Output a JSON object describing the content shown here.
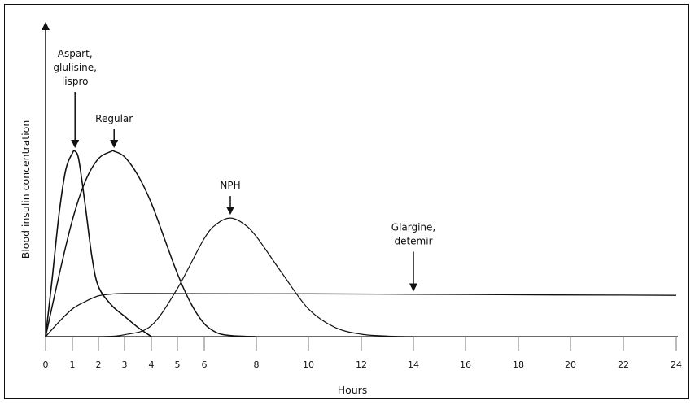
{
  "chart_data": {
    "type": "line",
    "title": "",
    "xlabel": "Hours",
    "ylabel": "Blood insulin concentration",
    "xlim": [
      0,
      24
    ],
    "ylim": [
      0,
      1.0
    ],
    "grid": false,
    "x_ticks": [
      "0",
      "1",
      "2",
      "3",
      "4",
      "5",
      "6",
      "8",
      "10",
      "12",
      "14",
      "16",
      "18",
      "20",
      "22",
      "24"
    ],
    "x_tick_values": [
      0,
      1,
      2,
      3,
      4,
      5,
      6,
      8,
      10,
      12,
      14,
      16,
      18,
      20,
      22,
      24
    ],
    "series": [
      {
        "x": [
          0,
          0.25,
          0.5,
          0.75,
          1.0,
          1.1,
          1.25,
          1.5,
          1.75,
          2.0,
          2.5,
          3.0,
          3.5,
          4.0
        ],
        "y": [
          0,
          0.32,
          0.66,
          0.9,
          0.99,
          1.0,
          0.95,
          0.7,
          0.43,
          0.27,
          0.17,
          0.11,
          0.05,
          0.0
        ]
      },
      {
        "x": [
          0,
          0.5,
          1.0,
          1.5,
          2.0,
          2.5,
          2.6,
          3.0,
          3.5,
          4.0,
          4.5,
          5.0,
          5.5,
          6.0,
          6.5,
          7.0,
          7.5,
          8.0
        ],
        "y": [
          0,
          0.33,
          0.63,
          0.84,
          0.96,
          1.0,
          1.0,
          0.97,
          0.87,
          0.72,
          0.53,
          0.34,
          0.18,
          0.07,
          0.02,
          0.006,
          0.002,
          0.0
        ]
      },
      {
        "x": [
          0,
          2,
          3,
          4,
          5,
          6,
          6.5,
          7,
          7.5,
          8,
          9,
          10,
          11,
          12,
          13,
          14
        ],
        "y": [
          0,
          0,
          0.01,
          0.06,
          0.26,
          0.53,
          0.61,
          0.64,
          0.61,
          0.54,
          0.34,
          0.15,
          0.05,
          0.013,
          0.003,
          0.0
        ]
      },
      {
        "x": [
          0,
          0.5,
          1,
          1.5,
          2,
          2.5,
          3,
          4,
          6,
          10,
          14,
          18,
          22,
          24
        ],
        "y": [
          0,
          0.08,
          0.15,
          0.19,
          0.22,
          0.23,
          0.233,
          0.233,
          0.232,
          0.231,
          0.229,
          0.226,
          0.224,
          0.223
        ]
      }
    ],
    "annotations": [
      {
        "lines": [
          "Aspart,",
          "glulisine,",
          "lispro"
        ],
        "x": 1.1,
        "y": 1.0
      },
      {
        "lines": [
          "Regular"
        ],
        "x": 2.6,
        "y": 1.0
      },
      {
        "lines": [
          "NPH"
        ],
        "x": 7.0,
        "y": 0.64
      },
      {
        "lines": [
          "Glargine,",
          "detemir"
        ],
        "x": 14.0,
        "y": 0.226
      }
    ]
  }
}
